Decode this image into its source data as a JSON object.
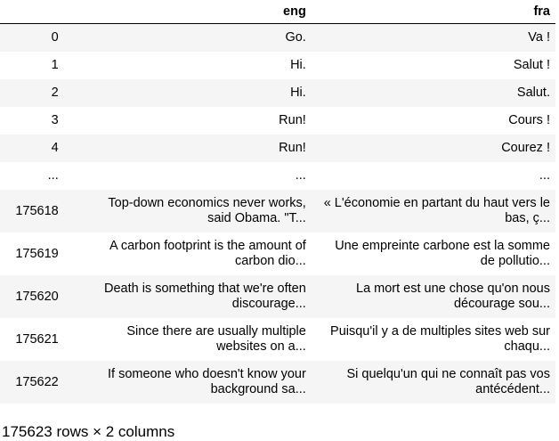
{
  "table": {
    "columns": [
      "eng",
      "fra"
    ],
    "rows": [
      {
        "index": "0",
        "eng": "Go.",
        "fra": "Va !"
      },
      {
        "index": "1",
        "eng": "Hi.",
        "fra": "Salut !"
      },
      {
        "index": "2",
        "eng": "Hi.",
        "fra": "Salut."
      },
      {
        "index": "3",
        "eng": "Run!",
        "fra": "Cours !"
      },
      {
        "index": "4",
        "eng": "Run!",
        "fra": "Courez !"
      },
      {
        "index": "...",
        "eng": "...",
        "fra": "..."
      },
      {
        "index": "175618",
        "eng": "Top-down economics never works, said Obama. \"T...",
        "fra": "« L'économie en partant du haut vers le bas, ç..."
      },
      {
        "index": "175619",
        "eng": "A carbon footprint is the amount of carbon dio...",
        "fra": "Une empreinte carbone est la somme de pollutio..."
      },
      {
        "index": "175620",
        "eng": "Death is something that we're often discourage...",
        "fra": "La mort est une chose qu'on nous décourage sou..."
      },
      {
        "index": "175621",
        "eng": "Since there are usually multiple websites on a...",
        "fra": "Puisqu'il y a de multiples sites web sur chaqu..."
      },
      {
        "index": "175622",
        "eng": "If someone who doesn't know your background sa...",
        "fra": "Si quelqu'un qui ne connaît pas vos antécédent..."
      }
    ]
  },
  "footer": {
    "shape_text": "175623 rows × 2 columns"
  }
}
